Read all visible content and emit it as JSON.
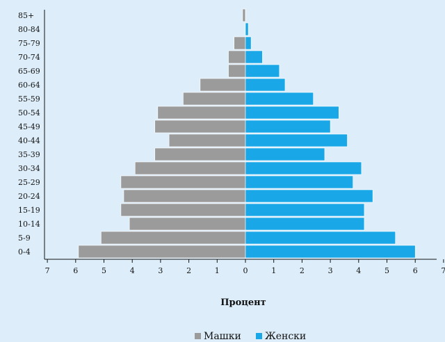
{
  "chart_data": {
    "type": "bar",
    "orientation": "horizontal",
    "categories": [
      "0-4",
      "5-9",
      "10-14",
      "15-19",
      "20-24",
      "25-29",
      "30-34",
      "35-39",
      "40-44",
      "45-49",
      "50-54",
      "55-59",
      "60-64",
      "65-69",
      "70-74",
      "75-79",
      "80-84",
      "85+"
    ],
    "series": [
      {
        "name": "Машки",
        "color": "#9b9b9b",
        "values": [
          5.9,
          5.1,
          4.1,
          4.4,
          4.3,
          4.4,
          3.9,
          3.2,
          2.7,
          3.2,
          3.1,
          2.2,
          1.6,
          0.6,
          0.6,
          0.4,
          0.0,
          0.1
        ]
      },
      {
        "name": "Женски",
        "color": "#1aa7e8",
        "values": [
          6.0,
          5.3,
          4.2,
          4.2,
          4.5,
          3.8,
          4.1,
          2.8,
          3.6,
          3.0,
          3.3,
          2.4,
          1.4,
          1.2,
          0.6,
          0.2,
          0.1,
          0.0
        ]
      }
    ],
    "xlim": [
      -7,
      7
    ],
    "xticks": [
      "7",
      "6",
      "5",
      "4",
      "3",
      "2",
      "1",
      "0",
      "1",
      "2",
      "3",
      "4",
      "5",
      "6",
      "7"
    ],
    "xlabel": "Процент",
    "ylabel": "",
    "title": "",
    "legend_position": "bottom-center"
  }
}
